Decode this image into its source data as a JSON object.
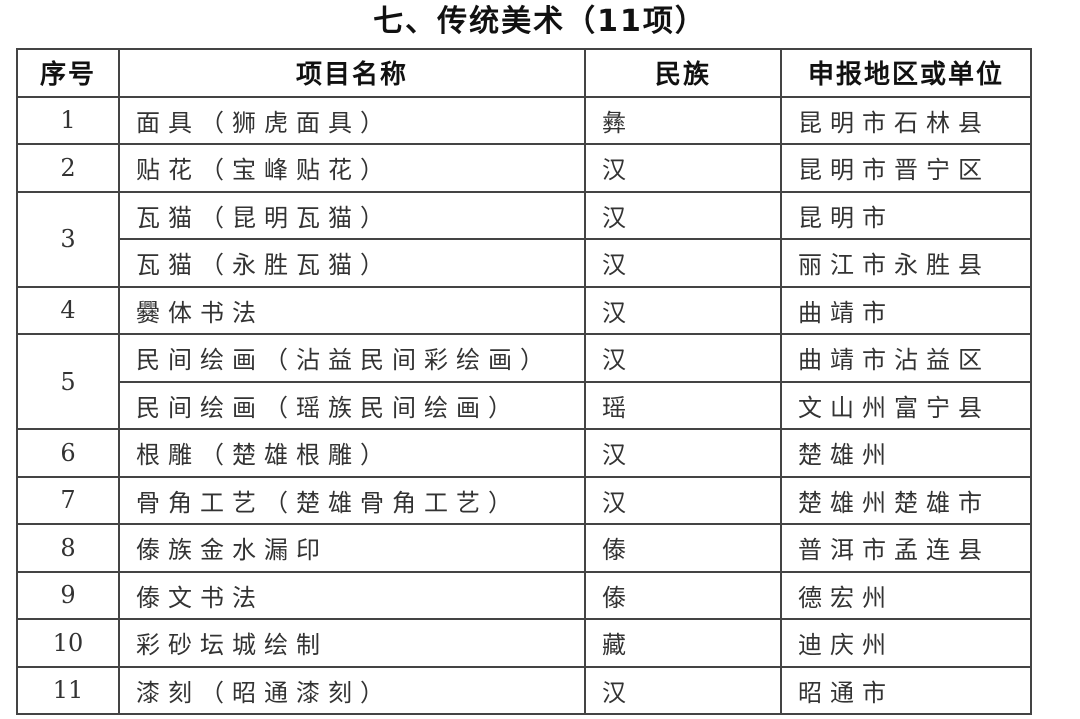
{
  "title": "七、传统美术（11项）",
  "headers": [
    "序号",
    "项目名称",
    "民族",
    "申报地区或单位"
  ],
  "rows": [
    {
      "no": "1",
      "items": [
        {
          "name": "面具（狮虎面具）",
          "ethnic": "彝",
          "region": "昆明市石林县"
        }
      ]
    },
    {
      "no": "2",
      "items": [
        {
          "name": "贴花（宝峰贴花）",
          "ethnic": "汉",
          "region": "昆明市晋宁区"
        }
      ]
    },
    {
      "no": "3",
      "items": [
        {
          "name": "瓦猫（昆明瓦猫）",
          "ethnic": "汉",
          "region": "昆明市"
        },
        {
          "name": "瓦猫（永胜瓦猫）",
          "ethnic": "汉",
          "region": "丽江市永胜县"
        }
      ]
    },
    {
      "no": "4",
      "items": [
        {
          "name": "爨体书法",
          "ethnic": "汉",
          "region": "曲靖市"
        }
      ]
    },
    {
      "no": "5",
      "items": [
        {
          "name": "民间绘画（沾益民间彩绘画）",
          "ethnic": "汉",
          "region": "曲靖市沾益区"
        },
        {
          "name": "民间绘画（瑶族民间绘画）",
          "ethnic": "瑶",
          "region": "文山州富宁县"
        }
      ]
    },
    {
      "no": "6",
      "items": [
        {
          "name": "根雕（楚雄根雕）",
          "ethnic": "汉",
          "region": "楚雄州"
        }
      ]
    },
    {
      "no": "7",
      "items": [
        {
          "name": "骨角工艺（楚雄骨角工艺）",
          "ethnic": "汉",
          "region": "楚雄州楚雄市"
        }
      ]
    },
    {
      "no": "8",
      "items": [
        {
          "name": "傣族金水漏印",
          "ethnic": "傣",
          "region": "普洱市孟连县"
        }
      ]
    },
    {
      "no": "9",
      "items": [
        {
          "name": "傣文书法",
          "ethnic": "傣",
          "region": "德宏州"
        }
      ]
    },
    {
      "no": "10",
      "items": [
        {
          "name": "彩砂坛城绘制",
          "ethnic": "藏",
          "region": "迪庆州"
        }
      ]
    },
    {
      "no": "11",
      "items": [
        {
          "name": "漆刻（昭通漆刻）",
          "ethnic": "汉",
          "region": "昭通市"
        }
      ]
    }
  ]
}
